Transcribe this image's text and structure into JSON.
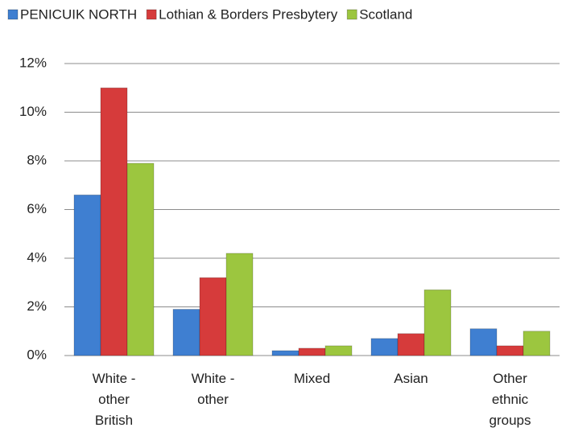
{
  "chart_data": {
    "type": "bar",
    "categories": [
      "White - other British",
      "White - other",
      "Mixed",
      "Asian",
      "Other ethnic groups"
    ],
    "series": [
      {
        "name": "PENICUIK NORTH",
        "color": "#3f7fd1",
        "values": [
          6.6,
          1.9,
          0.2,
          0.7,
          1.1
        ]
      },
      {
        "name": "Lothian & Borders Presbytery",
        "color": "#d63b3b",
        "values": [
          11.0,
          3.2,
          0.3,
          0.9,
          0.4
        ]
      },
      {
        "name": "Scotland",
        "color": "#9cc63f",
        "values": [
          7.9,
          4.2,
          0.4,
          2.7,
          1.0
        ]
      }
    ],
    "ylim": [
      0,
      12
    ],
    "yticks": [
      {
        "value": 0,
        "label": "0%"
      },
      {
        "value": 2,
        "label": "2%"
      },
      {
        "value": 4,
        "label": "4%"
      },
      {
        "value": 6,
        "label": "6%"
      },
      {
        "value": 8,
        "label": "8%"
      },
      {
        "value": 10,
        "label": "10%"
      },
      {
        "value": 12,
        "label": "12%"
      }
    ],
    "grid": true,
    "legend": "top"
  }
}
